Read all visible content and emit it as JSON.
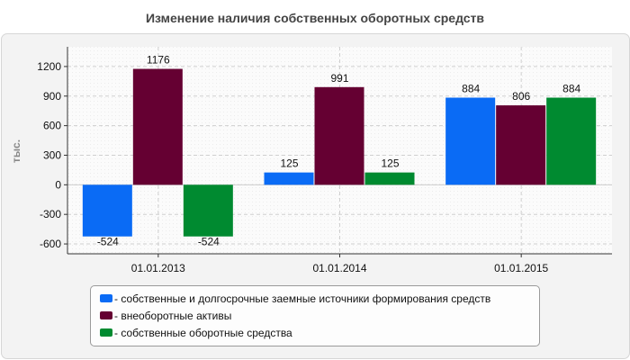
{
  "chart_data": {
    "type": "bar",
    "title": "Изменение наличия собственных оборотных средств",
    "ylabel": "тыс.",
    "xlabel": "",
    "categories": [
      "01.01.2013",
      "01.01.2014",
      "01.01.2015"
    ],
    "ylim": [
      -700,
      1400
    ],
    "yticks": [
      -600,
      -300,
      0,
      300,
      600,
      900,
      1200
    ],
    "grid": true,
    "legend_position": "bottom",
    "series": [
      {
        "name": "- собственные и долгосрочные заемные источники формирования средств",
        "values": [
          -524,
          125,
          884
        ],
        "color": "#0a6bf5"
      },
      {
        "name": "- внеоборотные активы",
        "values": [
          1176,
          991,
          806
        ],
        "color": "#650032"
      },
      {
        "name": "- собственные оборотные средства",
        "values": [
          -524,
          125,
          884
        ],
        "color": "#008a30"
      }
    ]
  }
}
